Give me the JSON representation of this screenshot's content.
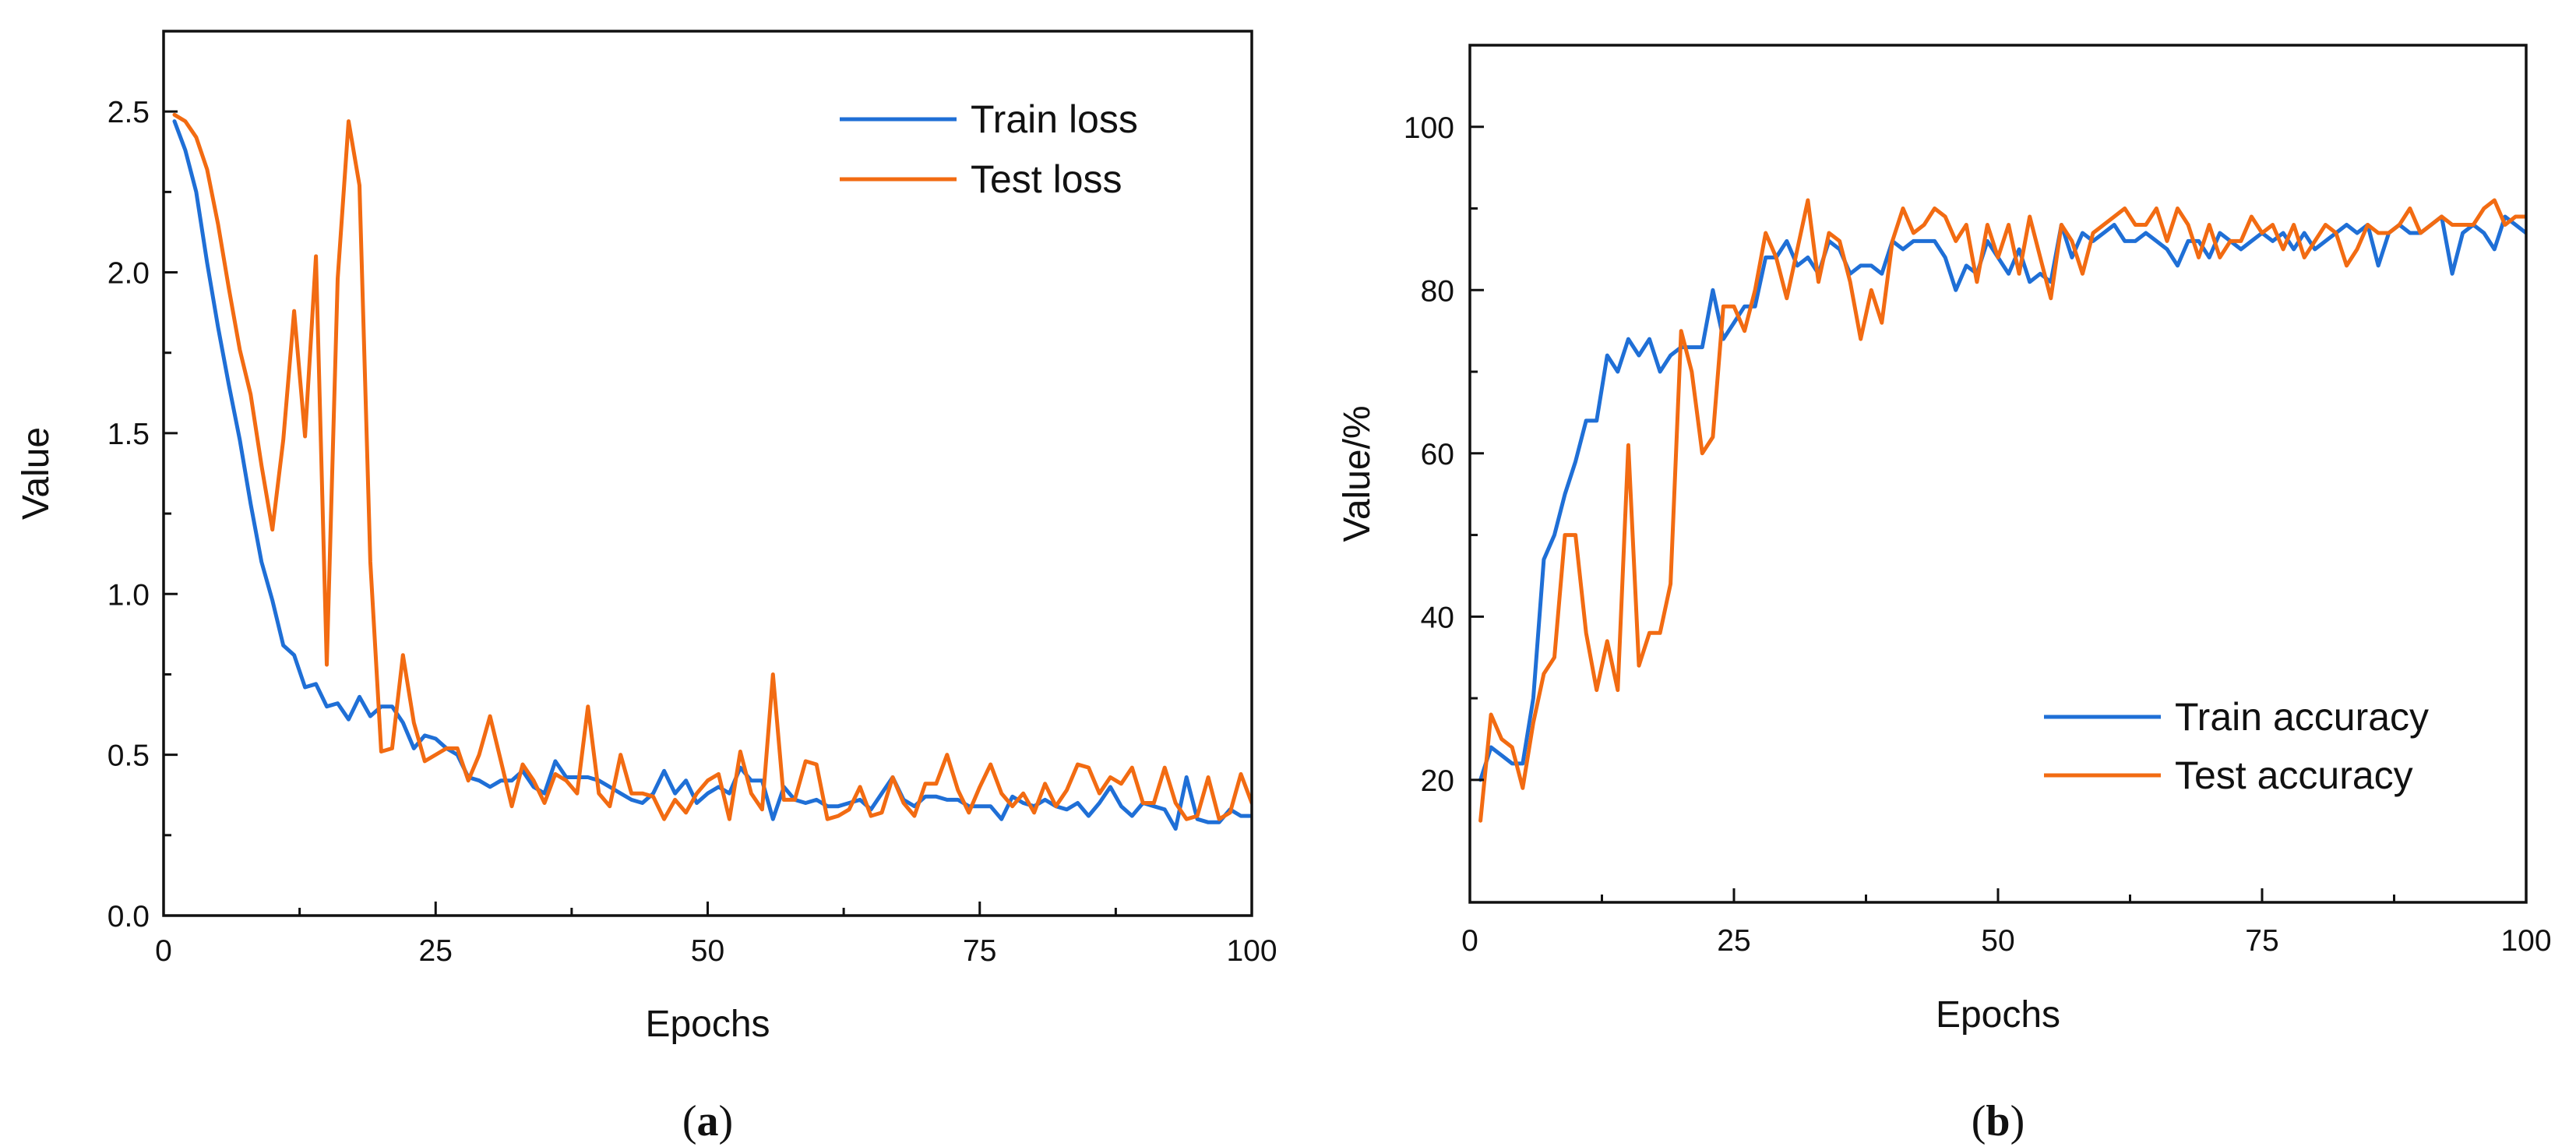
{
  "colors": {
    "train": "#1f6fd6",
    "test": "#f26b12"
  },
  "chart_data": [
    {
      "id": "a",
      "type": "line",
      "caption": "a",
      "xlabel": "Epochs",
      "ylabel": "Value",
      "xlim": [
        0,
        100
      ],
      "ylim": [
        0,
        2.75
      ],
      "xticks": [
        0,
        25,
        50,
        75,
        100
      ],
      "yticks": [
        0.0,
        0.5,
        1.0,
        1.5,
        2.0,
        2.5
      ],
      "ytick_labels": [
        "0.0",
        "0.5",
        "1.0",
        "1.5",
        "2.0",
        "2.5"
      ],
      "legend_position": "top-right",
      "series": [
        {
          "name": "Train loss",
          "color_key": "train",
          "x": [
            1,
            2,
            3,
            4,
            5,
            6,
            7,
            8,
            9,
            10,
            11,
            12,
            13,
            14,
            15,
            16,
            17,
            18,
            19,
            20,
            21,
            22,
            23,
            24,
            25,
            26,
            27,
            28,
            29,
            30,
            31,
            32,
            33,
            34,
            35,
            36,
            37,
            38,
            39,
            40,
            41,
            42,
            43,
            44,
            45,
            46,
            47,
            48,
            49,
            50,
            51,
            52,
            53,
            54,
            55,
            56,
            57,
            58,
            59,
            60,
            61,
            62,
            63,
            64,
            65,
            66,
            67,
            68,
            69,
            70,
            71,
            72,
            73,
            74,
            75,
            76,
            77,
            78,
            79,
            80,
            81,
            82,
            83,
            84,
            85,
            86,
            87,
            88,
            89,
            90,
            91,
            92,
            93,
            94,
            95,
            96,
            97,
            98,
            99,
            100
          ],
          "values": [
            2.47,
            2.38,
            2.25,
            2.03,
            1.83,
            1.65,
            1.48,
            1.28,
            1.1,
            0.98,
            0.84,
            0.81,
            0.71,
            0.72,
            0.65,
            0.66,
            0.61,
            0.68,
            0.62,
            0.65,
            0.65,
            0.6,
            0.52,
            0.56,
            0.55,
            0.52,
            0.5,
            0.43,
            0.42,
            0.4,
            0.42,
            0.42,
            0.45,
            0.4,
            0.38,
            0.48,
            0.43,
            0.43,
            0.43,
            0.42,
            0.4,
            0.38,
            0.36,
            0.35,
            0.38,
            0.45,
            0.38,
            0.42,
            0.35,
            0.38,
            0.4,
            0.38,
            0.46,
            0.42,
            0.42,
            0.3,
            0.4,
            0.36,
            0.35,
            0.36,
            0.34,
            0.34,
            0.35,
            0.36,
            0.33,
            0.38,
            0.43,
            0.36,
            0.34,
            0.37,
            0.37,
            0.36,
            0.36,
            0.34,
            0.34,
            0.34,
            0.3,
            0.37,
            0.35,
            0.34,
            0.36,
            0.34,
            0.33,
            0.35,
            0.31,
            0.35,
            0.4,
            0.34,
            0.31,
            0.35,
            0.34,
            0.33,
            0.27,
            0.43,
            0.3,
            0.29,
            0.29,
            0.33,
            0.31,
            0.31
          ]
        },
        {
          "name": "Test loss",
          "color_key": "test",
          "x": [
            1,
            2,
            3,
            4,
            5,
            6,
            7,
            8,
            9,
            10,
            11,
            12,
            13,
            14,
            15,
            16,
            17,
            18,
            19,
            20,
            21,
            22,
            23,
            24,
            25,
            26,
            27,
            28,
            29,
            30,
            31,
            32,
            33,
            34,
            35,
            36,
            37,
            38,
            39,
            40,
            41,
            42,
            43,
            44,
            45,
            46,
            47,
            48,
            49,
            50,
            51,
            52,
            53,
            54,
            55,
            56,
            57,
            58,
            59,
            60,
            61,
            62,
            63,
            64,
            65,
            66,
            67,
            68,
            69,
            70,
            71,
            72,
            73,
            74,
            75,
            76,
            77,
            78,
            79,
            80,
            81,
            82,
            83,
            84,
            85,
            86,
            87,
            88,
            89,
            90,
            91,
            92,
            93,
            94,
            95,
            96,
            97,
            98,
            99,
            100
          ],
          "values": [
            2.49,
            2.47,
            2.42,
            2.32,
            2.15,
            1.95,
            1.76,
            1.62,
            1.4,
            1.2,
            1.48,
            1.88,
            1.49,
            2.05,
            0.78,
            1.98,
            2.47,
            2.27,
            1.1,
            0.51,
            0.52,
            0.81,
            0.6,
            0.48,
            0.5,
            0.52,
            0.52,
            0.42,
            0.5,
            0.62,
            0.48,
            0.34,
            0.47,
            0.42,
            0.35,
            0.44,
            0.42,
            0.38,
            0.65,
            0.38,
            0.34,
            0.5,
            0.38,
            0.38,
            0.37,
            0.3,
            0.36,
            0.32,
            0.38,
            0.42,
            0.44,
            0.3,
            0.51,
            0.38,
            0.33,
            0.75,
            0.36,
            0.36,
            0.48,
            0.47,
            0.3,
            0.31,
            0.33,
            0.4,
            0.31,
            0.32,
            0.43,
            0.35,
            0.31,
            0.41,
            0.41,
            0.5,
            0.39,
            0.32,
            0.4,
            0.47,
            0.38,
            0.34,
            0.38,
            0.32,
            0.41,
            0.34,
            0.39,
            0.47,
            0.46,
            0.38,
            0.43,
            0.41,
            0.46,
            0.35,
            0.35,
            0.46,
            0.35,
            0.3,
            0.31,
            0.43,
            0.3,
            0.32,
            0.44,
            0.35
          ]
        }
      ]
    },
    {
      "id": "b",
      "type": "line",
      "caption": "b",
      "xlabel": "Epochs",
      "ylabel": "Value/%",
      "xlim": [
        0,
        100
      ],
      "ylim": [
        5,
        110
      ],
      "xticks": [
        0,
        25,
        50,
        75,
        100
      ],
      "yticks": [
        20,
        40,
        60,
        80,
        100
      ],
      "ytick_labels": [
        "20",
        "40",
        "60",
        "80",
        "100"
      ],
      "legend_position": "bottom-right",
      "series": [
        {
          "name": "Train accuracy",
          "color_key": "train",
          "x": [
            1,
            2,
            3,
            4,
            5,
            6,
            7,
            8,
            9,
            10,
            11,
            12,
            13,
            14,
            15,
            16,
            17,
            18,
            19,
            20,
            21,
            22,
            23,
            24,
            25,
            26,
            27,
            28,
            29,
            30,
            31,
            32,
            33,
            34,
            35,
            36,
            37,
            38,
            39,
            40,
            41,
            42,
            43,
            44,
            45,
            46,
            47,
            48,
            49,
            50,
            51,
            52,
            53,
            54,
            55,
            56,
            57,
            58,
            59,
            60,
            61,
            62,
            63,
            64,
            65,
            66,
            67,
            68,
            69,
            70,
            71,
            72,
            73,
            74,
            75,
            76,
            77,
            78,
            79,
            80,
            81,
            82,
            83,
            84,
            85,
            86,
            87,
            88,
            89,
            90,
            91,
            92,
            93,
            94,
            95,
            96,
            97,
            98,
            99,
            100
          ],
          "values": [
            20,
            24,
            23,
            22,
            22,
            30,
            47,
            50,
            55,
            59,
            64,
            64,
            72,
            70,
            74,
            72,
            74,
            70,
            72,
            73,
            73,
            73,
            80,
            74,
            76,
            78,
            78,
            84,
            84,
            86,
            83,
            84,
            82,
            86,
            85,
            82,
            83,
            83,
            82,
            86,
            85,
            86,
            86,
            86,
            84,
            80,
            83,
            82,
            86,
            84,
            82,
            85,
            81,
            82,
            81,
            88,
            84,
            87,
            86,
            87,
            88,
            86,
            86,
            87,
            86,
            85,
            83,
            86,
            86,
            84,
            87,
            86,
            85,
            86,
            87,
            86,
            87,
            85,
            87,
            85,
            86,
            87,
            88,
            87,
            88,
            83,
            87,
            88,
            87,
            87,
            88,
            89,
            82,
            87,
            88,
            87,
            85,
            89,
            88,
            87
          ]
        },
        {
          "name": "Test accuracy",
          "color_key": "test",
          "x": [
            1,
            2,
            3,
            4,
            5,
            6,
            7,
            8,
            9,
            10,
            11,
            12,
            13,
            14,
            15,
            16,
            17,
            18,
            19,
            20,
            21,
            22,
            23,
            24,
            25,
            26,
            27,
            28,
            29,
            30,
            31,
            32,
            33,
            34,
            35,
            36,
            37,
            38,
            39,
            40,
            41,
            42,
            43,
            44,
            45,
            46,
            47,
            48,
            49,
            50,
            51,
            52,
            53,
            54,
            55,
            56,
            57,
            58,
            59,
            60,
            61,
            62,
            63,
            64,
            65,
            66,
            67,
            68,
            69,
            70,
            71,
            72,
            73,
            74,
            75,
            76,
            77,
            78,
            79,
            80,
            81,
            82,
            83,
            84,
            85,
            86,
            87,
            88,
            89,
            90,
            91,
            92,
            93,
            94,
            95,
            96,
            97,
            98,
            99,
            100
          ],
          "values": [
            15,
            28,
            25,
            24,
            19,
            27,
            33,
            35,
            50,
            50,
            38,
            31,
            37,
            31,
            61,
            34,
            38,
            38,
            44,
            75,
            70,
            60,
            62,
            78,
            78,
            75,
            80,
            87,
            84,
            79,
            85,
            91,
            81,
            87,
            86,
            81,
            74,
            80,
            76,
            86,
            90,
            87,
            88,
            90,
            89,
            86,
            88,
            81,
            88,
            84,
            88,
            82,
            89,
            84,
            79,
            88,
            86,
            82,
            87,
            88,
            89,
            90,
            88,
            88,
            90,
            86,
            90,
            88,
            84,
            88,
            84,
            86,
            86,
            89,
            87,
            88,
            85,
            88,
            84,
            86,
            88,
            87,
            83,
            85,
            88,
            87,
            87,
            88,
            90,
            87,
            88,
            89,
            88,
            88,
            88,
            90,
            91,
            88,
            89,
            89
          ]
        }
      ]
    }
  ]
}
